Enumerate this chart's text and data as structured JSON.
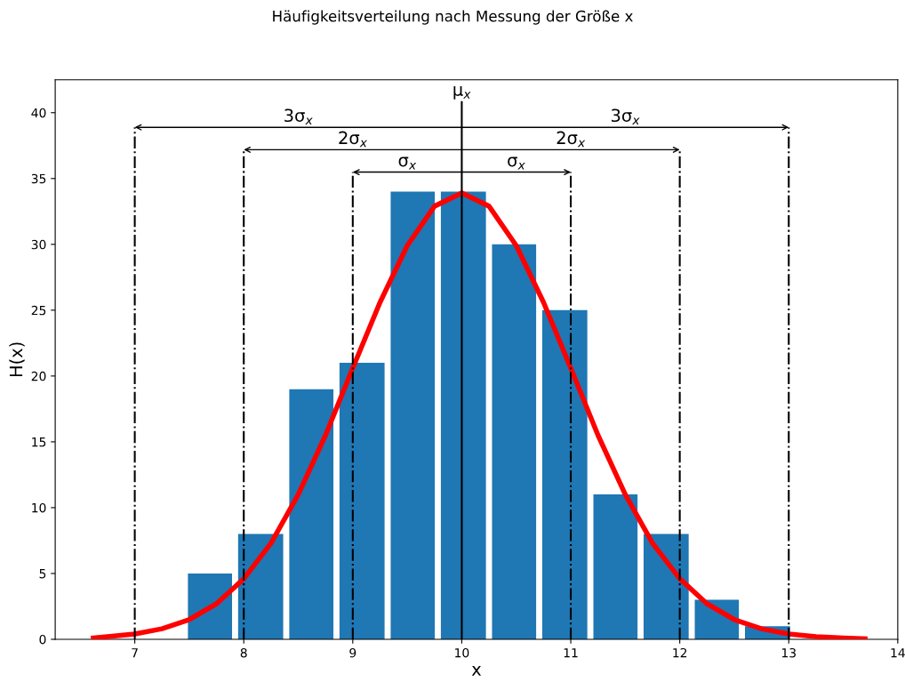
{
  "chart_data": {
    "type": "histogram",
    "title": "Häufigkeitsverteilung nach Messung der Größe x",
    "xlabel": "x",
    "ylabel": "H(x)",
    "series": [
      {
        "type": "histogram",
        "bins": [
          7.46,
          7.92,
          8.39,
          8.85,
          9.32,
          9.78,
          10.25,
          10.71,
          11.18,
          11.64,
          12.11,
          12.57,
          13.04
        ],
        "values": [
          5,
          8,
          19,
          21,
          34,
          34,
          30,
          25,
          11,
          8,
          3,
          1
        ],
        "color": "#1f77b4"
      },
      {
        "type": "line",
        "x": [
          6.62,
          6.75,
          7.0,
          7.25,
          7.5,
          7.75,
          8.0,
          8.25,
          8.5,
          8.75,
          9.0,
          9.25,
          9.5,
          9.75,
          10.0,
          10.25,
          10.5,
          10.75,
          11.0,
          11.25,
          11.5,
          11.75,
          12.0,
          12.25,
          12.5,
          12.75,
          13.0,
          13.25,
          13.5,
          13.7
        ],
        "values": [
          0.1,
          0.2,
          0.4,
          0.8,
          1.5,
          2.7,
          4.6,
          7.3,
          11.0,
          15.5,
          20.6,
          25.6,
          29.9,
          32.9,
          33.9,
          32.9,
          29.9,
          25.6,
          20.6,
          15.5,
          11.0,
          7.3,
          4.6,
          2.7,
          1.5,
          0.8,
          0.4,
          0.2,
          0.1,
          0.04
        ],
        "color": "#ff0000"
      }
    ],
    "ref_lines": [
      {
        "axis": "x",
        "value": 10,
        "label": "μ$_{x}$",
        "line_style": "solid",
        "color": "#000000"
      },
      {
        "axis": "x",
        "value": 7,
        "line_style": "dashdot",
        "color": "#000000"
      },
      {
        "axis": "x",
        "value": 8,
        "line_style": "dashdot",
        "color": "#000000"
      },
      {
        "axis": "x",
        "value": 9,
        "line_style": "dashdot",
        "color": "#000000"
      },
      {
        "axis": "x",
        "value": 11,
        "line_style": "dashdot",
        "color": "#000000"
      },
      {
        "axis": "x",
        "value": 12,
        "line_style": "dashdot",
        "color": "#000000"
      },
      {
        "axis": "x",
        "value": 13,
        "line_style": "dashdot",
        "color": "#000000"
      }
    ],
    "annotations": [
      "3σ$_{x}$",
      "3σ$_{x}$",
      "2σ$_{x}$",
      "2σ$_{x}$",
      "σ$_{x}$",
      "σ$_{x}$"
    ],
    "xlim": [
      6.27,
      14.0
    ],
    "xticks": [
      7,
      8,
      9,
      10,
      11,
      12,
      13,
      14
    ],
    "ylim": [
      0,
      42.5
    ],
    "yticks": [
      0,
      5,
      10,
      15,
      20,
      25,
      30,
      35,
      40
    ],
    "grid": false,
    "legend": false
  }
}
